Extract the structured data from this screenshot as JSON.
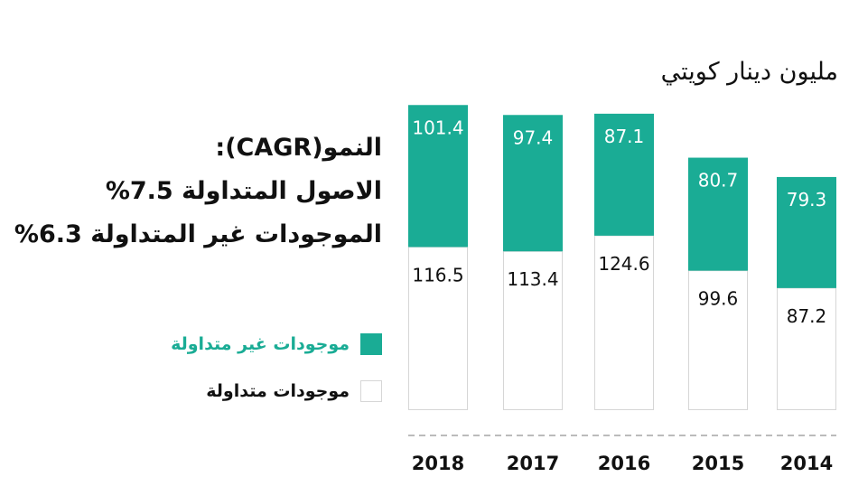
{
  "unit_label": "مليون دينار كويتي",
  "cagr": {
    "heading": "النمو(CAGR):",
    "line1": "الاصول المتداولة 7.5%",
    "line2": "الموجودات غير المتداولة 6.3%"
  },
  "legend": {
    "non_current": "موجودات غير متداولة",
    "current": "موجودات متداولة"
  },
  "colors": {
    "non_current": "#1aac95",
    "current": "#ffffff",
    "outline": "#d6d6d6",
    "axis": "#bbbbbb"
  },
  "chart_data": {
    "type": "bar",
    "stacked": true,
    "categories": [
      "2018",
      "2017",
      "2016",
      "2015",
      "2014"
    ],
    "series": [
      {
        "name": "موجودات متداولة",
        "values": [
          116.5,
          113.4,
          124.6,
          99.6,
          87.2
        ]
      },
      {
        "name": "موجودات غير متداولة",
        "values": [
          101.4,
          97.4,
          87.1,
          80.7,
          79.3
        ]
      }
    ],
    "title": "",
    "ylabel": "مليون دينار كويتي",
    "legend_position": "left",
    "grid": false
  }
}
